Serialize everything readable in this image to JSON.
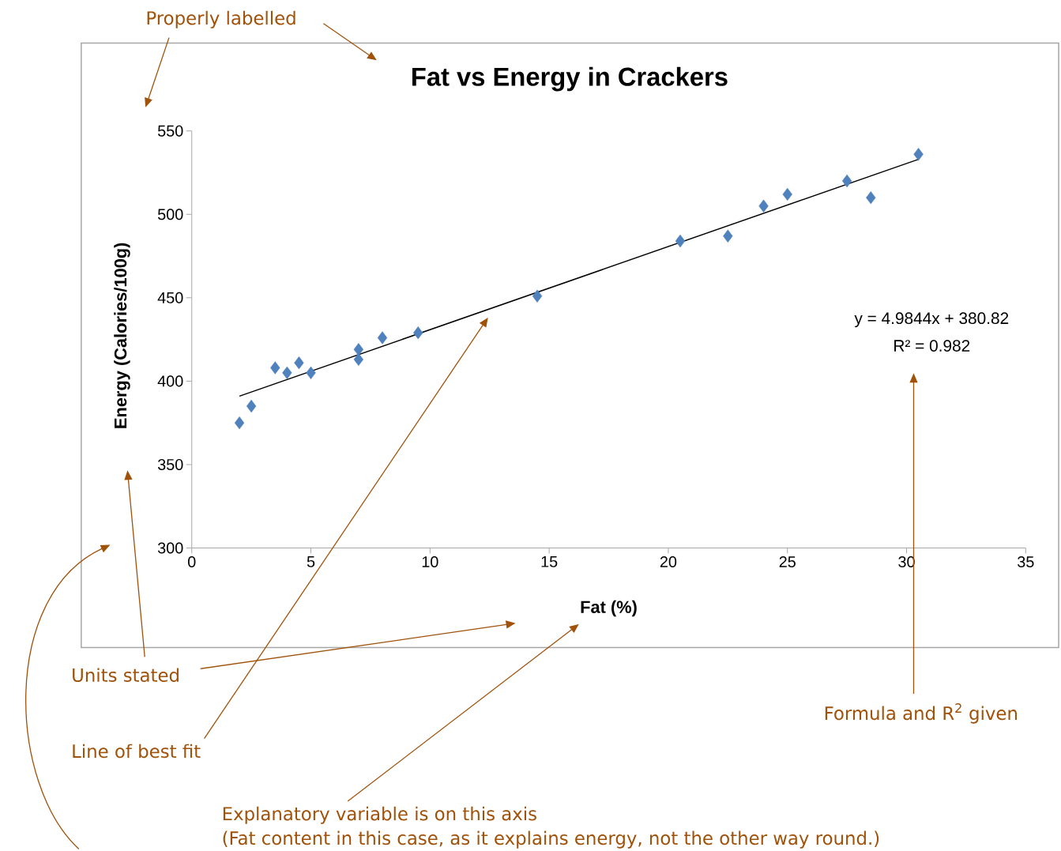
{
  "chart_data": {
    "type": "scatter",
    "title": "Fat vs Energy in Crackers",
    "xlabel": "Fat (%)",
    "ylabel": "Energy (Calories/100g)",
    "xlim": [
      0,
      35
    ],
    "ylim": [
      300,
      550
    ],
    "xticks": [
      0,
      5,
      10,
      15,
      20,
      25,
      30,
      35
    ],
    "yticks": [
      300,
      350,
      400,
      450,
      500,
      550
    ],
    "grid": false,
    "marker": "diamond",
    "series": [
      {
        "color": "#4f81bd",
        "x": [
          2,
          2.5,
          3.5,
          4,
          4.5,
          5,
          7,
          7,
          8,
          9.5,
          14.5,
          20.5,
          22.5,
          24,
          25,
          27.5,
          28.5,
          30.5
        ],
        "values": [
          375,
          385,
          408,
          405,
          411,
          405,
          419,
          413,
          426,
          429,
          451,
          484,
          487,
          505,
          512,
          520,
          510,
          536
        ]
      },
      {
        "type": "line",
        "marker": "none",
        "color": "#000000",
        "x": [
          2,
          30.5
        ],
        "values": [
          391,
          533
        ]
      }
    ],
    "annotations": [
      "y = 4.9844x + 380.82",
      "R² = 0.982",
      "Properly labelled",
      "Units stated",
      "Line of best fit",
      "Formula and R$^{2}$ given",
      "Explanatory variable is on this axis",
      "(Fat content in this case, as it explains energy, not the other way round.)"
    ]
  }
}
